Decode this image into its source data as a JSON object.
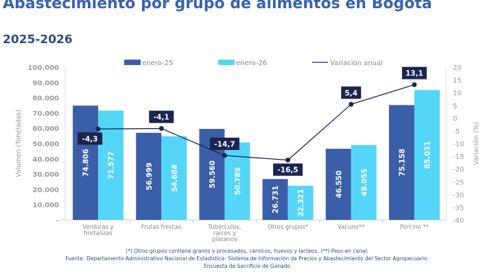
{
  "title": "Abastecimiento por grupo de alimentos en Bogotá",
  "subtitle": "2025-2026",
  "colors": {
    "enero-25": "#3a5ea8",
    "enero-26": "#55d6f8",
    "line": "#1c2550",
    "label_bg": "#1c2550"
  },
  "chart_data": {
    "type": "bar+line",
    "categories": [
      "Verduras y hortalizas",
      "Frutas frescas",
      "Tubérculos, raíces y plátanos",
      "Otros grupos*",
      "Vacuno**",
      "Porcino **"
    ],
    "category_lines": [
      [
        "Verduras y",
        "hortalizas"
      ],
      [
        "Frutas frescas"
      ],
      [
        "Tubérculos,",
        "raíces y",
        "plátanos"
      ],
      [
        "Otros grupos*"
      ],
      [
        "Vacuno**"
      ],
      [
        "Porcino **"
      ]
    ],
    "series": [
      {
        "name": "enero-25",
        "type": "bar",
        "axis": "left",
        "values": [
          74806,
          56999,
          59560,
          26731,
          46550,
          75158
        ],
        "labels": [
          "74.806",
          "56.999",
          "59.560",
          "26.731",
          "46.550",
          "75.158"
        ]
      },
      {
        "name": "enero-26",
        "type": "bar",
        "axis": "left",
        "values": [
          71577,
          54688,
          50789,
          22321,
          49055,
          85031
        ],
        "labels": [
          "71.577",
          "54.688",
          "50.789",
          "22.321",
          "49.055",
          "85.031"
        ]
      },
      {
        "name": "Variación anual",
        "type": "line",
        "axis": "right",
        "values": [
          -4.3,
          -4.1,
          -14.7,
          -16.5,
          5.4,
          13.1
        ],
        "labels": [
          "-4,3",
          "-4,1",
          "-14,7",
          "-16,5",
          "5,4",
          "13,1"
        ]
      }
    ],
    "ylabel": "Volumen (Toneladas)",
    "ylim": [
      0,
      100000
    ],
    "yticks": [
      "-",
      "10.000",
      "20.000",
      "30.000",
      "40.000",
      "50.000",
      "60.000",
      "70.000",
      "80.000",
      "90.000",
      "100.000"
    ],
    "y2label": "Variación (%)",
    "y2lim": [
      -40,
      20
    ],
    "y2ticks": [
      "-40",
      "-35",
      "-30",
      "-25",
      "-20",
      "-15",
      "-10",
      "-5",
      "0",
      "5",
      "10",
      "15",
      "20"
    ],
    "legend_position": "top",
    "grid": false
  },
  "footnotes": [
    "(*) Otros grupos contiene granos y procesados, cárnicos, huevos y lacteos. (**) Peso en canal.",
    "Fuente: Departamento Administrativo Nacional de Estadística- Sistema de Información de Precios y Abastecimiento del Sector Agropecuario.",
    "Encuesta de  Sacrificio de Ganado"
  ]
}
